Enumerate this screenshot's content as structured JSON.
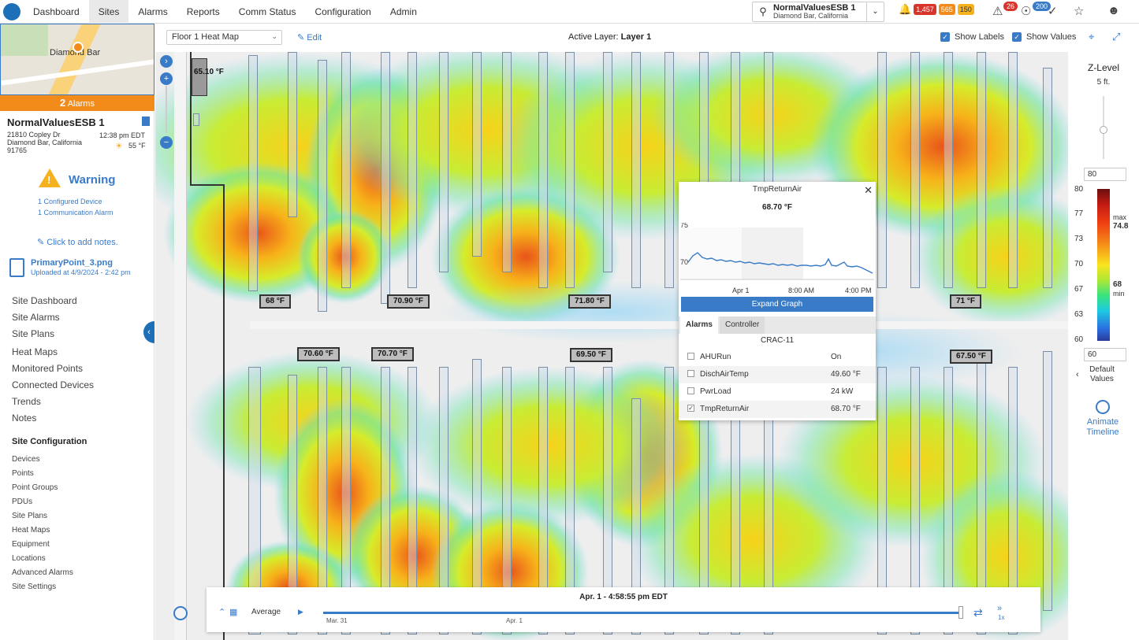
{
  "nav": {
    "items": [
      "Dashboard",
      "Sites",
      "Alarms",
      "Reports",
      "Comm Status",
      "Configuration",
      "Admin"
    ],
    "active": "Sites"
  },
  "site_selector": {
    "name": "NormalValuesESB 1",
    "location": "Diamond Bar, California"
  },
  "alarm_badges": {
    "red": "1,457",
    "orange": "565",
    "yellow": "150",
    "notification_count": "26",
    "signal_count": "200"
  },
  "sidebar": {
    "map_label": "Diamond Bar",
    "alarm_count": "2",
    "alarm_label": "Alarms",
    "site_name": "NormalValuesESB 1",
    "address_line1": "21810 Copley Dr",
    "address_line2": "Diamond Bar, California",
    "address_line3": "91765",
    "time": "12:38 pm EDT",
    "temperature": "55 °F",
    "warning_title": "Warning",
    "warning_lines": [
      "1 Configured Device",
      "1 Communication Alarm"
    ],
    "add_notes": "Click to add notes.",
    "file_name": "PrimaryPoint_3.png",
    "file_uploaded": "Uploaded at 4/9/2024 - 2:42 pm",
    "menu": [
      "Site Dashboard",
      "Site Alarms",
      "Site Plans",
      "Heat Maps",
      "Monitored Points",
      "Connected Devices",
      "Trends",
      "Notes"
    ],
    "config_heading": "Site Configuration",
    "config_menu": [
      "Devices",
      "Points",
      "Point Groups",
      "PDUs",
      "Site Plans",
      "Heat Maps",
      "Equipment",
      "Locations",
      "Advanced Alarms",
      "Site Settings"
    ]
  },
  "toolbar": {
    "floor": "Floor 1 Heat Map",
    "edit": "Edit",
    "active_layer_label": "Active Layer:",
    "active_layer": "Layer 1",
    "show_labels": "Show Labels",
    "show_values": "Show Values"
  },
  "map_values": [
    "65.10 °F",
    "68 °F",
    "70.90 °F",
    "71.80 °F",
    "71 °F",
    "70.60 °F",
    "70.70 °F",
    "69.50 °F",
    "67.50 °F"
  ],
  "popup": {
    "title": "TmpReturnAir",
    "value": "68.70 °F",
    "graph_y_ticks": [
      "75",
      "70"
    ],
    "graph_x_ticks": [
      "Apr 1",
      "8:00 AM",
      "4:00 PM"
    ],
    "expand_button": "Expand Graph",
    "tabs": [
      "Alarms",
      "Controller"
    ],
    "controller": "CRAC-11",
    "points": [
      {
        "name": "AHURun",
        "value": "On",
        "checked": false
      },
      {
        "name": "DischAirTemp",
        "value": "49.60 °F",
        "checked": false
      },
      {
        "name": "PwrLoad",
        "value": "24 kW",
        "checked": false
      },
      {
        "name": "TmpReturnAir",
        "value": "68.70 °F",
        "checked": true
      }
    ]
  },
  "timeline": {
    "current": "Apr. 1 - 4:58:55 pm EDT",
    "mode": "Average",
    "start_label": "Mar. 31",
    "mid_label": "Apr. 1",
    "speed": "1x"
  },
  "right_panel": {
    "z_level_label": "Z-Level",
    "z_level_value": "5 ft.",
    "upper_value": "80",
    "lower_value": "60",
    "scale_ticks": [
      "80",
      "77",
      "73",
      "70",
      "67",
      "63",
      "60"
    ],
    "max_label": "max",
    "max_value": "74.8",
    "min_value": "68",
    "min_label": "min",
    "default_values": "Default Values",
    "animate": "Animate Timeline"
  },
  "colors": {
    "accent": "#3a7bc8",
    "alarm_orange": "#f38b1b",
    "brand_blue": "#1d6fb8"
  }
}
